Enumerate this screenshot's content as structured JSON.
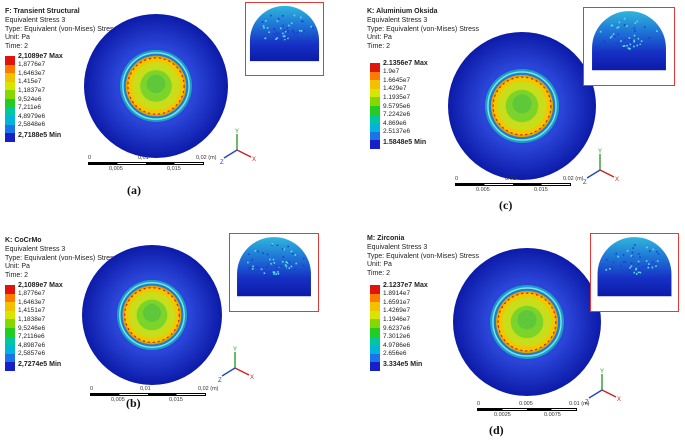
{
  "panels": [
    {
      "id": "a",
      "title": "F: Transient Structural",
      "lines": [
        "Equivalent Stress 3",
        "Type: Equivalent (von-Mises) Stress",
        "Unit: Pa",
        "Time: 2"
      ],
      "legend": [
        "2,1089e7 Max",
        "1,8776e7",
        "1,6463e7",
        "1,415e7",
        "1,1837e7",
        "9,524e6",
        "7,211e6",
        "4,8979e6",
        "2,5848e6",
        "2,7188e5 Min"
      ],
      "scale_top": [
        "0",
        "0,01",
        "0,02 (m)"
      ],
      "scale_bottom": [
        "0,005",
        "0,015"
      ],
      "caption": "(a)"
    },
    {
      "id": "c",
      "title": "K: Aluminium Oksida",
      "lines": [
        "Equivalent Stress 3",
        "Type: Equivalent (von-Mises) Stress",
        "Unit: Pa",
        "Time: 2"
      ],
      "legend": [
        "2.1356e7 Max",
        "1.9e7",
        "1.6645e7",
        "1.429e7",
        "1.1935e7",
        "9.5795e6",
        "7.2242e6",
        "4.869e6",
        "2.5137e6",
        "1.5848e5 Min"
      ],
      "scale_top": [
        "0",
        "0.01",
        "0.02 (m)"
      ],
      "scale_bottom": [
        "0.005",
        "0.015"
      ],
      "caption": "(c)"
    },
    {
      "id": "b",
      "title": "K: CoCrMo",
      "lines": [
        "Equivalent Stress 3",
        "Type: Equivalent (von-Mises) Stress",
        "Unit: Pa",
        "Time: 2"
      ],
      "legend": [
        "2,1089e7 Max",
        "1,8776e7",
        "1,6463e7",
        "1,4151e7",
        "1,1838e7",
        "9,5246e6",
        "7,2116e6",
        "4,8987e6",
        "2,5857e6",
        "2,7274e5 Min"
      ],
      "scale_top": [
        "0",
        "0,01",
        "0,02 (m)"
      ],
      "scale_bottom": [
        "0,005",
        "0,015"
      ],
      "caption": "(b)"
    },
    {
      "id": "d",
      "title": "M: Zirconia",
      "lines": [
        "Equivalent Stress 3",
        "Type: Equivalent (von-Mises) Stress",
        "Unit: Pa",
        "Time: 2"
      ],
      "legend": [
        "2.1237e7 Max",
        "1.8914e7",
        "1.6591e7",
        "1.4269e7",
        "1.1946e7",
        "9.6237e6",
        "7.3012e6",
        "4.9786e6",
        "2.656e6",
        "3.334e5 Min"
      ],
      "scale_top": [
        "0",
        "0.005",
        "0.01 (m)"
      ],
      "scale_bottom": [
        "0.0025",
        "0.0075"
      ],
      "caption": "(d)"
    }
  ],
  "legend_colors": [
    "#e0140c",
    "#ff7a00",
    "#f2c200",
    "#d6e600",
    "#84d800",
    "#22cc22",
    "#00c7a0",
    "#00b4dc",
    "#1a73e8",
    "#1620c8"
  ],
  "axis_labels": {
    "x": "X",
    "y": "Y",
    "z": "Z"
  }
}
